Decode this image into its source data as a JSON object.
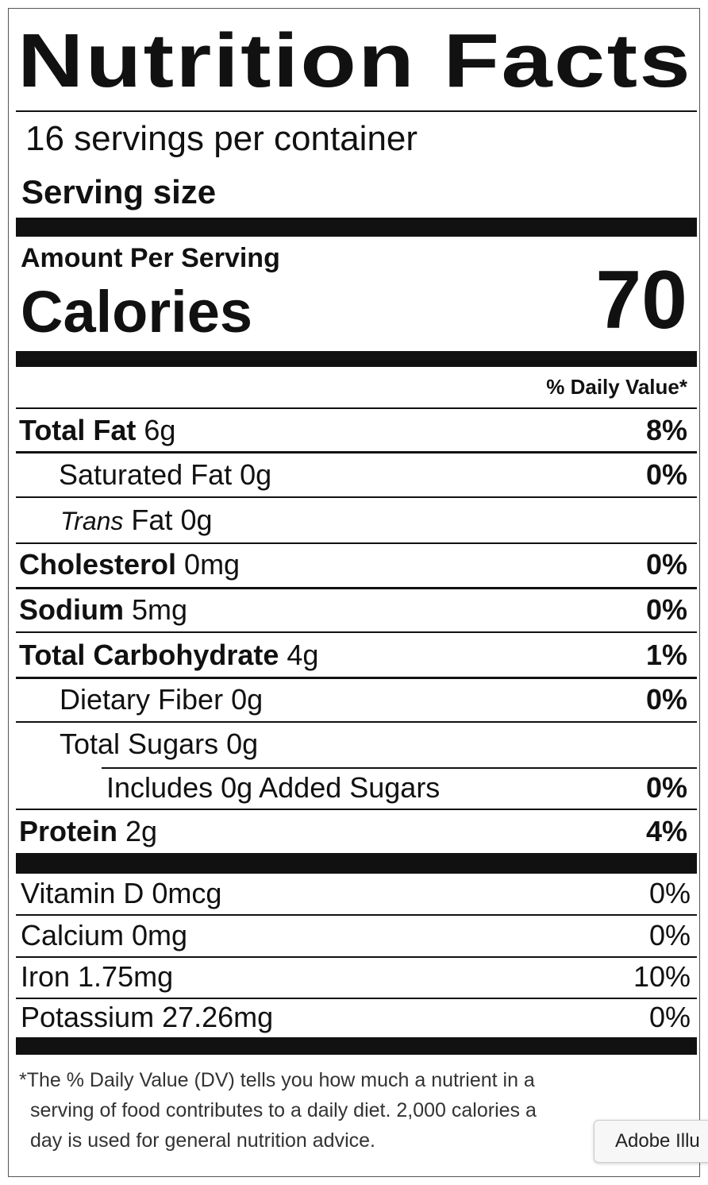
{
  "title": "Nutrition Facts",
  "servings": "16 servings per container",
  "serving_size": "Serving size",
  "amount_per_serving": "Amount Per Serving",
  "calories": {
    "label": "Calories",
    "value": "70"
  },
  "daily_value_header": "% Daily Value*",
  "nutrients": [
    {
      "name": "Total Fat",
      "amount": "6g",
      "dv": "8%"
    },
    {
      "name": "Saturated Fat",
      "amount": "0g",
      "dv": "0%"
    },
    {
      "name": "Trans",
      "amount": "Fat 0g"
    },
    {
      "name": "Cholesterol",
      "amount": "0mg",
      "dv": "0%"
    },
    {
      "name": "Sodium",
      "amount": "5mg",
      "dv": "0%"
    },
    {
      "name": "Total Carbohydrate",
      "amount": "4g",
      "dv": "1%"
    },
    {
      "name": "Dietary Fiber",
      "amount": "0g",
      "dv": "0%"
    },
    {
      "name": "Total Sugars",
      "amount": "0g"
    },
    {
      "name": "Includes 0g Added Sugars",
      "dv": "0%"
    },
    {
      "name": "Protein",
      "amount": "2g",
      "dv": "4%"
    }
  ],
  "vitamins": [
    {
      "name": "Vitamin D 0mcg",
      "dv": "0%"
    },
    {
      "name": "Calcium 0mg",
      "dv": "0%"
    },
    {
      "name": "Iron 1.75mg",
      "dv": "10%"
    },
    {
      "name": "Potassium 27.26mg",
      "dv": "0%"
    }
  ],
  "footnote": [
    "*The % Daily Value (DV) tells you how much a nutrient in a",
    "serving of food contributes to a daily diet. 2,000 calories a",
    "day is used for general nutrition advice."
  ],
  "tooltip": "Adobe Illu"
}
